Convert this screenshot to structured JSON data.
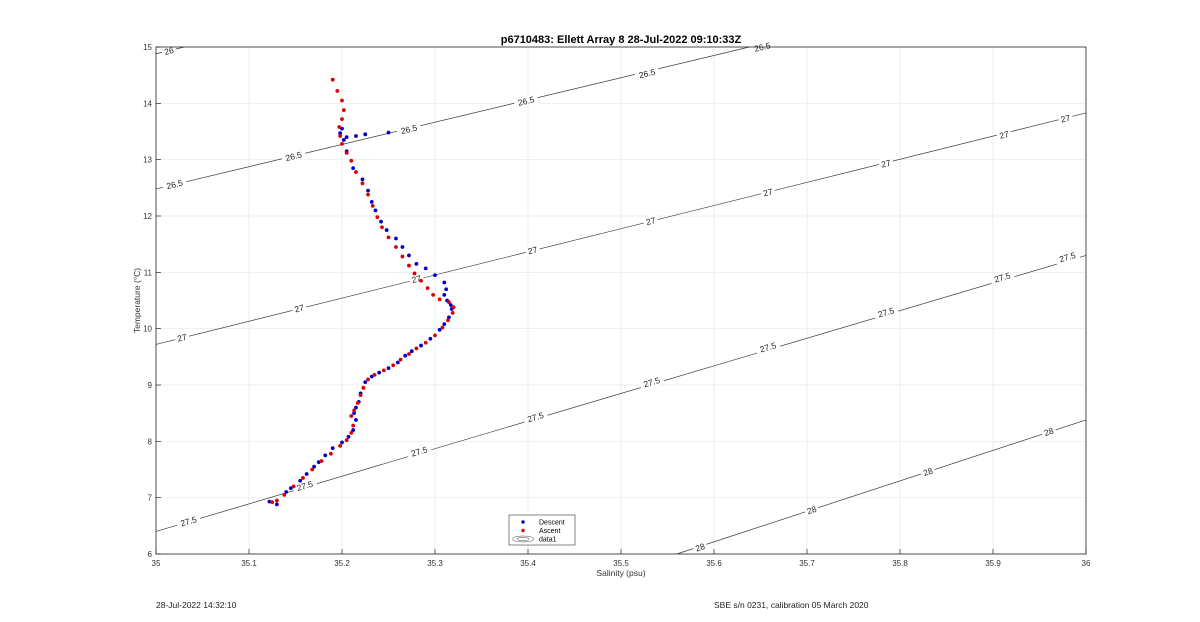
{
  "chart_data": {
    "type": "scatter",
    "title": "p6710483: Ellett Array 8 28-Jul-2022 09:10:33Z",
    "xlabel": "Salinity (psu)",
    "ylabel": "Temperature (°C)",
    "xlim": [
      35,
      36
    ],
    "ylim": [
      6,
      15
    ],
    "x_ticks": [
      "35",
      "35.1",
      "35.2",
      "35.3",
      "35.4",
      "35.5",
      "35.6",
      "35.7",
      "35.8",
      "35.9",
      "36"
    ],
    "y_ticks": [
      "6",
      "7",
      "8",
      "9",
      "10",
      "11",
      "12",
      "13",
      "14",
      "15"
    ],
    "grid": true,
    "legend": {
      "placement": "bottom-center",
      "entries": [
        "Descent",
        "Ascent",
        "data1"
      ]
    },
    "series": [
      {
        "name": "Descent",
        "color": "#0000cc",
        "marker": "dot",
        "points": [
          [
            35.13,
            6.88
          ],
          [
            35.122,
            6.93
          ],
          [
            35.14,
            7.1
          ],
          [
            35.145,
            7.17
          ],
          [
            35.155,
            7.3
          ],
          [
            35.162,
            7.42
          ],
          [
            35.17,
            7.55
          ],
          [
            35.175,
            7.63
          ],
          [
            35.182,
            7.75
          ],
          [
            35.19,
            7.88
          ],
          [
            35.2,
            7.98
          ],
          [
            35.207,
            8.08
          ],
          [
            35.212,
            8.2
          ],
          [
            35.215,
            8.38
          ],
          [
            35.213,
            8.5
          ],
          [
            35.215,
            8.6
          ],
          [
            35.218,
            8.7
          ],
          [
            35.22,
            8.85
          ],
          [
            35.225,
            9.05
          ],
          [
            35.232,
            9.15
          ],
          [
            35.24,
            9.22
          ],
          [
            35.25,
            9.3
          ],
          [
            35.26,
            9.4
          ],
          [
            35.268,
            9.52
          ],
          [
            35.275,
            9.6
          ],
          [
            35.285,
            9.7
          ],
          [
            35.295,
            9.82
          ],
          [
            35.305,
            9.98
          ],
          [
            35.31,
            10.08
          ],
          [
            35.315,
            10.2
          ],
          [
            35.318,
            10.35
          ],
          [
            35.317,
            10.42
          ],
          [
            35.313,
            10.5
          ],
          [
            35.31,
            10.6
          ],
          [
            35.312,
            10.7
          ],
          [
            35.31,
            10.82
          ],
          [
            35.3,
            10.95
          ],
          [
            35.29,
            11.07
          ],
          [
            35.28,
            11.15
          ],
          [
            35.272,
            11.3
          ],
          [
            35.265,
            11.45
          ],
          [
            35.258,
            11.6
          ],
          [
            35.248,
            11.75
          ],
          [
            35.242,
            11.9
          ],
          [
            35.236,
            12.1
          ],
          [
            35.232,
            12.25
          ],
          [
            35.228,
            12.45
          ],
          [
            35.222,
            12.65
          ],
          [
            35.212,
            12.85
          ],
          [
            35.205,
            13.15
          ],
          [
            35.202,
            13.35
          ],
          [
            35.205,
            13.4
          ],
          [
            35.215,
            13.42
          ],
          [
            35.225,
            13.45
          ],
          [
            35.25,
            13.48
          ],
          [
            35.198,
            13.47
          ],
          [
            35.2,
            13.55
          ]
        ]
      },
      {
        "name": "Ascent",
        "color": "#dd0000",
        "marker": "dot",
        "points": [
          [
            35.125,
            6.92
          ],
          [
            35.13,
            6.95
          ],
          [
            35.138,
            7.05
          ],
          [
            35.148,
            7.2
          ],
          [
            35.158,
            7.35
          ],
          [
            35.168,
            7.5
          ],
          [
            35.178,
            7.65
          ],
          [
            35.188,
            7.78
          ],
          [
            35.198,
            7.92
          ],
          [
            35.205,
            8.02
          ],
          [
            35.21,
            8.15
          ],
          [
            35.212,
            8.28
          ],
          [
            35.21,
            8.45
          ],
          [
            35.213,
            8.55
          ],
          [
            35.217,
            8.68
          ],
          [
            35.22,
            8.82
          ],
          [
            35.223,
            8.95
          ],
          [
            35.228,
            9.1
          ],
          [
            35.235,
            9.18
          ],
          [
            35.245,
            9.26
          ],
          [
            35.255,
            9.35
          ],
          [
            35.263,
            9.45
          ],
          [
            35.272,
            9.55
          ],
          [
            35.28,
            9.65
          ],
          [
            35.29,
            9.75
          ],
          [
            35.3,
            9.88
          ],
          [
            35.308,
            10.02
          ],
          [
            35.314,
            10.15
          ],
          [
            35.319,
            10.28
          ],
          [
            35.32,
            10.38
          ],
          [
            35.315,
            10.47
          ],
          [
            35.305,
            10.52
          ],
          [
            35.298,
            10.6
          ],
          [
            35.292,
            10.72
          ],
          [
            35.285,
            10.85
          ],
          [
            35.278,
            10.98
          ],
          [
            35.272,
            11.12
          ],
          [
            35.265,
            11.28
          ],
          [
            35.258,
            11.45
          ],
          [
            35.25,
            11.62
          ],
          [
            35.243,
            11.8
          ],
          [
            35.238,
            11.98
          ],
          [
            35.233,
            12.18
          ],
          [
            35.228,
            12.38
          ],
          [
            35.222,
            12.58
          ],
          [
            35.215,
            12.78
          ],
          [
            35.21,
            12.98
          ],
          [
            35.205,
            13.12
          ],
          [
            35.2,
            13.28
          ],
          [
            35.198,
            13.42
          ],
          [
            35.197,
            13.58
          ],
          [
            35.2,
            13.72
          ],
          [
            35.202,
            13.88
          ],
          [
            35.2,
            14.05
          ],
          [
            35.195,
            14.22
          ],
          [
            35.19,
            14.42
          ]
        ]
      }
    ],
    "contours": [
      {
        "value": 26,
        "label": "26",
        "line": [
          [
            35,
            14.88
          ],
          [
            35.5,
            16.85
          ]
        ],
        "labels_at": [
          [
            35.014,
            14.93
          ]
        ]
      },
      {
        "value": 26.5,
        "label": "26.5",
        "line": [
          [
            35,
            12.48
          ],
          [
            36,
            16.43
          ]
        ],
        "labels_at": [
          [
            35.02,
            12.56
          ],
          [
            35.148,
            13.06
          ],
          [
            35.272,
            13.54
          ],
          [
            35.398,
            14.04
          ],
          [
            35.528,
            14.53
          ],
          [
            35.652,
            15.0
          ]
        ]
      },
      {
        "value": 27,
        "label": "27",
        "line": [
          [
            35,
            9.72
          ],
          [
            36,
            13.83
          ]
        ],
        "labels_at": [
          [
            35.028,
            9.84
          ],
          [
            35.154,
            10.36
          ],
          [
            35.28,
            10.88
          ],
          [
            35.405,
            11.39
          ],
          [
            35.532,
            11.91
          ],
          [
            35.658,
            12.42
          ],
          [
            35.785,
            12.93
          ],
          [
            35.912,
            13.44
          ],
          [
            35.978,
            13.73
          ]
        ]
      },
      {
        "value": 27.5,
        "label": "27.5",
        "line": [
          [
            35,
            6.4
          ],
          [
            36,
            11.3
          ]
        ],
        "labels_at": [
          [
            35.035,
            6.58
          ],
          [
            35.16,
            7.21
          ],
          [
            35.283,
            7.82
          ],
          [
            35.408,
            8.43
          ],
          [
            35.533,
            9.05
          ],
          [
            35.658,
            9.67
          ],
          [
            35.785,
            10.29
          ],
          [
            35.91,
            10.91
          ],
          [
            35.98,
            11.27
          ]
        ]
      },
      {
        "value": 28,
        "label": "28",
        "line": [
          [
            35.56,
            6.0
          ],
          [
            36,
            8.38
          ]
        ],
        "labels_at": [
          [
            35.585,
            6.12
          ],
          [
            35.705,
            6.78
          ],
          [
            35.83,
            7.46
          ],
          [
            35.96,
            8.17
          ]
        ]
      }
    ]
  },
  "footer": {
    "timestamp": "28-Jul-2022 14:32:10",
    "calibration": "SBE s/n 0231, calibration 05 March 2020"
  }
}
